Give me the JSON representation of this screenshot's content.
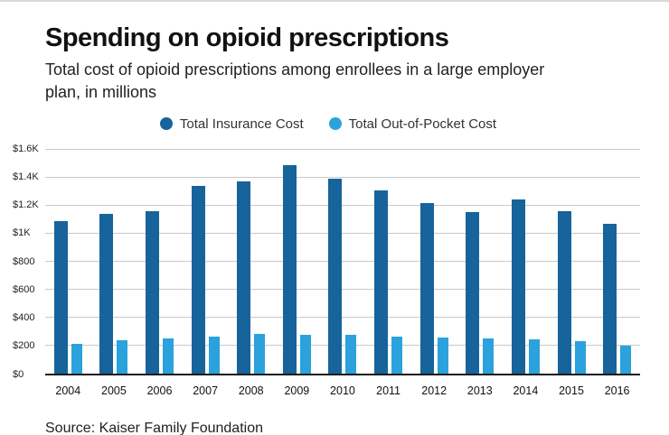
{
  "header": {
    "title": "Spending on opioid prescriptions",
    "subtitle": "Total cost of opioid prescriptions among enrollees in a large employer plan, in millions"
  },
  "legend": {
    "items": [
      {
        "label": "Total Insurance Cost",
        "color": "#17639B"
      },
      {
        "label": "Total Out-of-Pocket Cost",
        "color": "#2BA2DC"
      }
    ]
  },
  "chart_data": {
    "type": "bar",
    "title": "Spending on opioid prescriptions",
    "subtitle": "Total cost of opioid prescriptions among enrollees in a large employer plan, in millions",
    "xlabel": "",
    "ylabel": "",
    "ylim": [
      0,
      1600
    ],
    "grid": true,
    "legend_position": "top",
    "categories": [
      "2004",
      "2005",
      "2006",
      "2007",
      "2008",
      "2009",
      "2010",
      "2011",
      "2012",
      "2013",
      "2014",
      "2015",
      "2016"
    ],
    "series": [
      {
        "name": "Total Insurance Cost",
        "color": "#17639B",
        "values": [
          1090,
          1140,
          1160,
          1340,
          1370,
          1490,
          1390,
          1310,
          1220,
          1150,
          1240,
          1160,
          1070
        ]
      },
      {
        "name": "Total Out-of-Pocket Cost",
        "color": "#2BA2DC",
        "values": [
          210,
          235,
          250,
          265,
          280,
          275,
          275,
          265,
          255,
          250,
          245,
          230,
          195
        ]
      }
    ],
    "yticks": [
      {
        "label": "$0",
        "value": 0
      },
      {
        "label": "$200",
        "value": 200
      },
      {
        "label": "$400",
        "value": 400
      },
      {
        "label": "$600",
        "value": 600
      },
      {
        "label": "$800",
        "value": 800
      },
      {
        "label": "$1K",
        "value": 1000
      },
      {
        "label": "$1.2K",
        "value": 1200
      },
      {
        "label": "$1.4K",
        "value": 1400
      },
      {
        "label": "$1.6K",
        "value": 1600
      }
    ]
  },
  "footer": {
    "source": "Source: Kaiser Family Foundation"
  }
}
